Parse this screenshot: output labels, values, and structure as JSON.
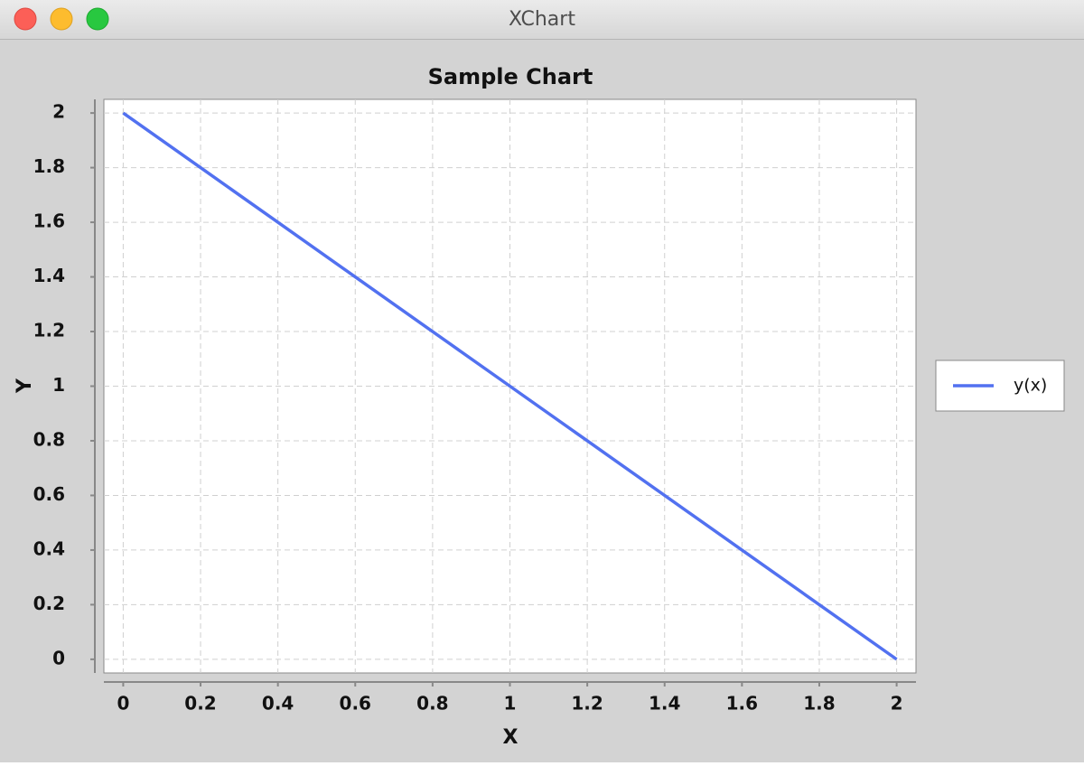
{
  "window": {
    "title": "XChart"
  },
  "chart_data": {
    "type": "line",
    "title": "Sample Chart",
    "x_label": "X",
    "y_label": "Y",
    "x": [
      0,
      0.2,
      0.4,
      0.6,
      0.8,
      1,
      1.2,
      1.4,
      1.6,
      1.8,
      2
    ],
    "series": [
      {
        "name": "y(x)",
        "color": "#5271f0",
        "values": [
          2,
          1.8,
          1.6,
          1.4,
          1.2,
          1,
          0.8,
          0.6,
          0.4,
          0.2,
          0
        ]
      }
    ],
    "xlim": [
      -0.05,
      2.05
    ],
    "ylim": [
      -0.05,
      2.05
    ],
    "xticks": [
      0,
      0.2,
      0.4,
      0.6,
      0.8,
      1,
      1.2,
      1.4,
      1.6,
      1.8,
      2
    ],
    "yticks": [
      0,
      0.2,
      0.4,
      0.6,
      0.8,
      1,
      1.2,
      1.4,
      1.6,
      1.8,
      2
    ],
    "grid": true,
    "legend": "right"
  }
}
